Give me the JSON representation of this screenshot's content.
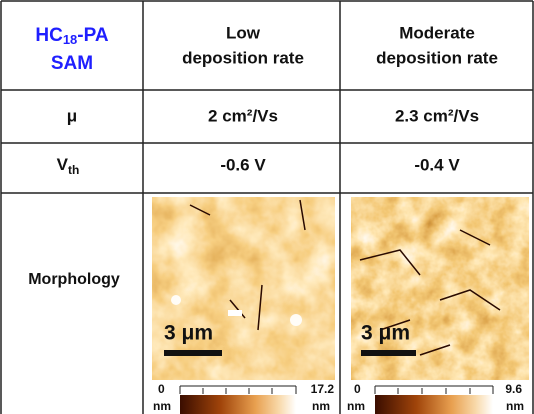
{
  "table": {
    "header": {
      "sample": {
        "main": "HC",
        "subscript": "18",
        "suffix": "-PA",
        "line2": "SAM"
      },
      "columns": [
        [
          "Low",
          "deposition rate"
        ],
        [
          "Moderate",
          "deposition rate"
        ]
      ]
    },
    "rows": {
      "mobility": {
        "label": "μ",
        "values": [
          "2 cm²/Vs",
          "2.3 cm²/Vs"
        ]
      },
      "threshold": {
        "label": {
          "main": "V",
          "subscript": "th"
        },
        "values": [
          "-0.6 V",
          "-0.4 V"
        ]
      },
      "morphology": {
        "label": "Morphology",
        "images": [
          {
            "scale_bar": "3 μm",
            "colorbar_min": {
              "value": "0",
              "unit": "nm"
            },
            "colorbar_max": {
              "value": "17.2",
              "unit": "nm"
            }
          },
          {
            "scale_bar": "3 μm",
            "colorbar_min": {
              "value": "0",
              "unit": "nm"
            },
            "colorbar_max": {
              "value": "9.6",
              "unit": "nm"
            }
          }
        ]
      }
    }
  }
}
